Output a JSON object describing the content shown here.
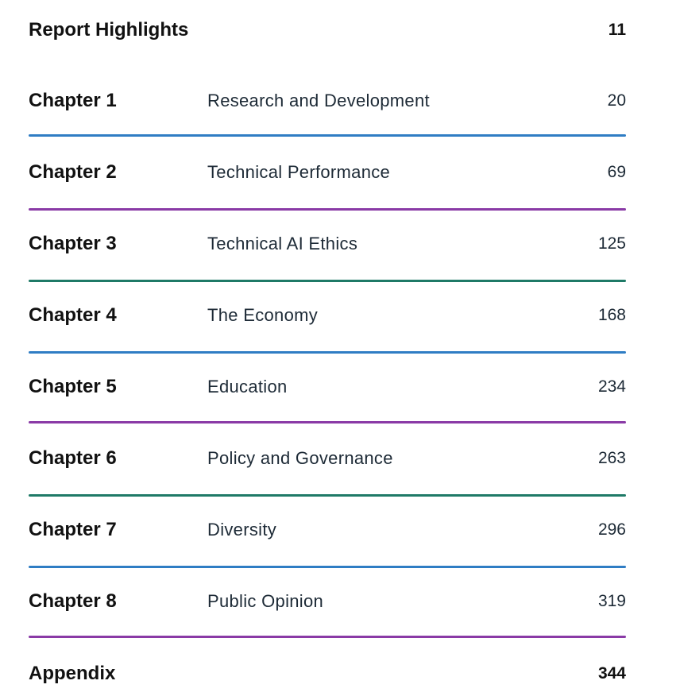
{
  "toc": {
    "highlights": {
      "label": "Report Highlights",
      "page": "11"
    },
    "chapters": [
      {
        "label": "Chapter 1",
        "title": "Research and Development",
        "page": "20",
        "rule_color": "#2f7dc4"
      },
      {
        "label": "Chapter 2",
        "title": "Technical Performance",
        "page": "69",
        "rule_color": "#8a3aa6"
      },
      {
        "label": "Chapter 3",
        "title": "Technical AI Ethics",
        "page": "125",
        "rule_color": "#1f7a67"
      },
      {
        "label": "Chapter 4",
        "title": "The Economy",
        "page": "168",
        "rule_color": "#2f7dc4"
      },
      {
        "label": "Chapter 5",
        "title": "Education",
        "page": "234",
        "rule_color": "#8a3aa6"
      },
      {
        "label": "Chapter 6",
        "title": "Policy and Governance",
        "page": "263",
        "rule_color": "#1f7a67"
      },
      {
        "label": "Chapter 7",
        "title": "Diversity",
        "page": "296",
        "rule_color": "#2f7dc4"
      },
      {
        "label": "Chapter 8",
        "title": "Public Opinion",
        "page": "319",
        "rule_color": "#8a3aa6"
      }
    ],
    "appendix": {
      "label": "Appendix",
      "page": "344"
    }
  }
}
